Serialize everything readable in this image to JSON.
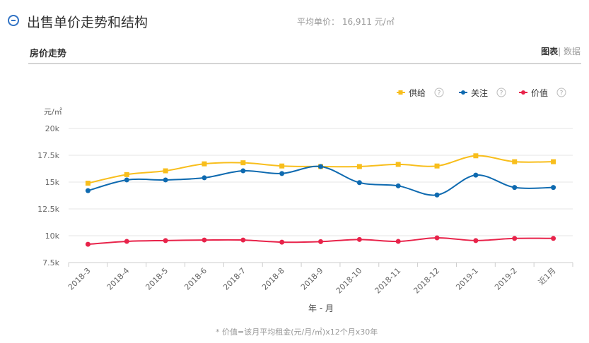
{
  "header": {
    "title": "出售单价走势和结构",
    "avg_label": "平均单价：",
    "avg_value": "16,911 元/㎡"
  },
  "section": {
    "title": "房价走势",
    "toggle_chart": "图表",
    "toggle_sep": "|",
    "toggle_data": " 数据"
  },
  "chart_data": {
    "type": "line",
    "ylabel": "元/㎡",
    "xlabel": "年 - 月",
    "ylim": [
      7500,
      20000
    ],
    "yticks": [
      7500,
      10000,
      12500,
      15000,
      17500,
      20000
    ],
    "ytick_labels": [
      "7.5k",
      "10k",
      "12.5k",
      "15k",
      "17.5k",
      "20k"
    ],
    "grid": true,
    "legend": "top-right",
    "categories": [
      "2018-3",
      "2018-4",
      "2018-5",
      "2018-6",
      "2018-7",
      "2018-8",
      "2018-9",
      "2018-10",
      "2018-11",
      "2018-12",
      "2019-1",
      "2019-2",
      "近1月"
    ],
    "series": [
      {
        "name": "供给",
        "color": "#f8be1c",
        "marker": "square",
        "values": [
          14900,
          15700,
          16050,
          16700,
          16800,
          16500,
          16450,
          16450,
          16650,
          16500,
          17450,
          16900,
          16900
        ]
      },
      {
        "name": "关注",
        "color": "#0e6ab0",
        "marker": "circle",
        "values": [
          14200,
          15200,
          15200,
          15400,
          16050,
          15800,
          16450,
          14950,
          14650,
          13800,
          15650,
          14500,
          14500
        ]
      },
      {
        "name": "价值",
        "color": "#e8234a",
        "marker": "circle",
        "values": [
          9200,
          9470,
          9550,
          9600,
          9600,
          9400,
          9450,
          9650,
          9470,
          9800,
          9550,
          9750,
          9750
        ]
      }
    ]
  },
  "legend_help": "?",
  "footnote": "* 价值=该月平均租金(元/月/㎡)x12个月x30年"
}
